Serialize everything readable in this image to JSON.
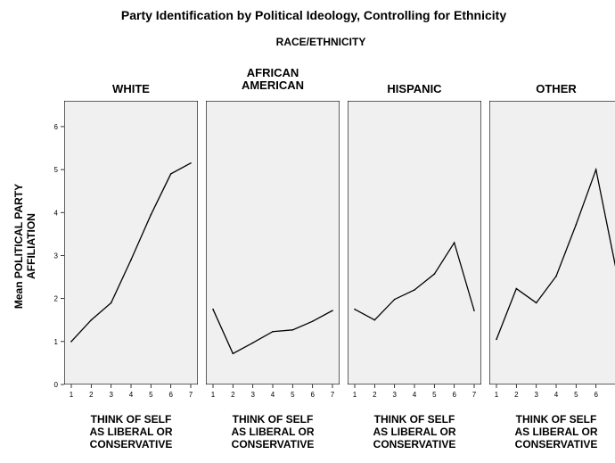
{
  "chart_data": {
    "type": "line",
    "title": "Party Identification by Political Ideology, Controlling for Ethnicity",
    "facet_header": "RACE/ETHNICITY",
    "ylabel": [
      "Mean POLITICAL PARTY",
      "AFFILIATION"
    ],
    "xlabel": [
      "THINK OF SELF",
      "AS LIBERAL OR",
      "CONSERVATIVE"
    ],
    "x": [
      1,
      2,
      3,
      4,
      5,
      6,
      7
    ],
    "xlim": [
      1,
      7
    ],
    "ylim": [
      0,
      6
    ],
    "yticks": [
      0,
      1,
      2,
      3,
      4,
      5,
      6
    ],
    "grid": false,
    "panels": [
      {
        "title": [
          "WHITE"
        ],
        "values": [
          1.0,
          1.5,
          1.9,
          2.9,
          3.95,
          4.9,
          5.15
        ]
      },
      {
        "title": [
          "AFRICAN",
          "AMERICAN"
        ],
        "values": [
          1.75,
          0.72,
          0.97,
          1.23,
          1.27,
          1.47,
          1.72
        ]
      },
      {
        "title": [
          "HISPANIC"
        ],
        "values": [
          1.75,
          1.5,
          1.98,
          2.2,
          2.57,
          3.3,
          1.72
        ]
      },
      {
        "title": [
          "OTHER"
        ],
        "values": [
          1.05,
          2.23,
          1.9,
          2.52,
          3.72,
          5.0,
          2.7
        ]
      }
    ]
  }
}
